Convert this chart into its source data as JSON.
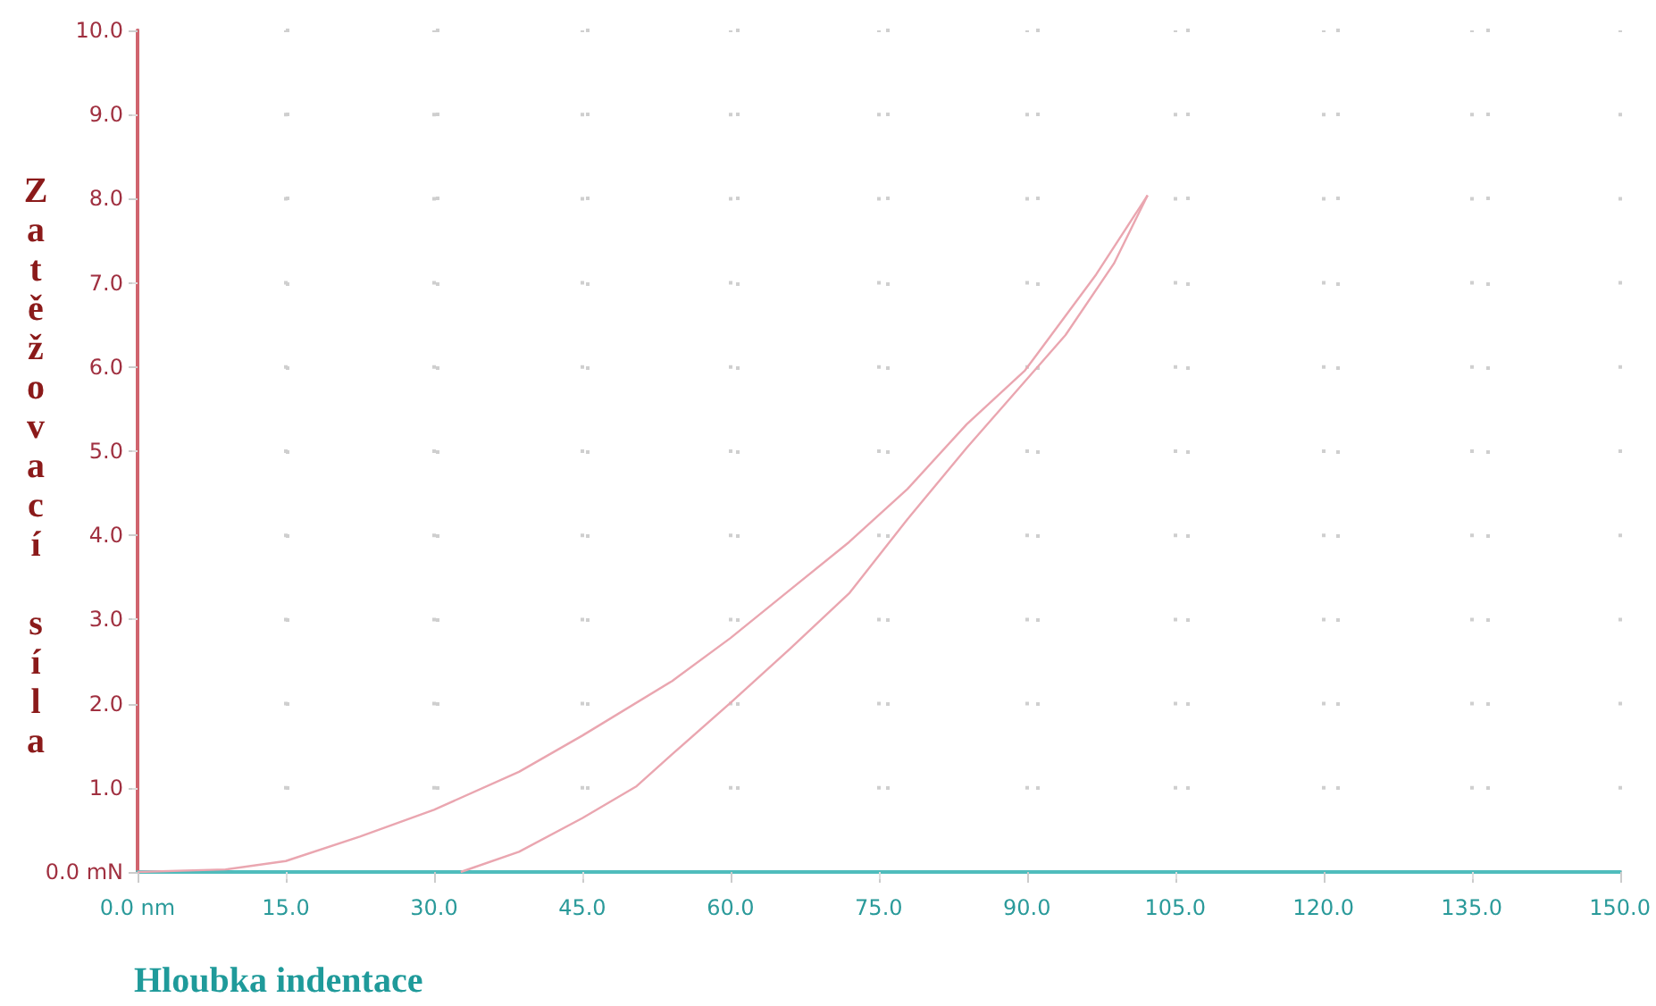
{
  "chart_data": {
    "type": "line",
    "xlabel": "Hloubka indentace",
    "ylabel": "Zatěžovací síla",
    "xlim": [
      0,
      150
    ],
    "ylim": [
      0,
      10
    ],
    "xticks": [
      {
        "value": 0,
        "label": "0.0 nm"
      },
      {
        "value": 15,
        "label": "15.0"
      },
      {
        "value": 30,
        "label": "30.0"
      },
      {
        "value": 45,
        "label": "45.0"
      },
      {
        "value": 60,
        "label": "60.0"
      },
      {
        "value": 75,
        "label": "75.0"
      },
      {
        "value": 90,
        "label": "90.0"
      },
      {
        "value": 105,
        "label": "105.0"
      },
      {
        "value": 120,
        "label": "120.0"
      },
      {
        "value": 135,
        "label": "135.0"
      },
      {
        "value": 150,
        "label": "150.0"
      }
    ],
    "yticks": [
      {
        "value": 0,
        "label": "0.0 mN"
      },
      {
        "value": 1,
        "label": "1.0"
      },
      {
        "value": 2,
        "label": "2.0"
      },
      {
        "value": 3,
        "label": "3.0"
      },
      {
        "value": 4,
        "label": "4.0"
      },
      {
        "value": 5,
        "label": "5.0"
      },
      {
        "value": 6,
        "label": "6.0"
      },
      {
        "value": 7,
        "label": "7.0"
      },
      {
        "value": 8,
        "label": "8.0"
      },
      {
        "value": 9,
        "label": "9.0"
      },
      {
        "value": 10,
        "label": "10.0"
      }
    ],
    "grid": true,
    "marker": "none",
    "line_style": "solid",
    "series": [
      {
        "color": "#eaa6b0",
        "x": [
          0,
          8.9,
          15,
          22.5,
          30,
          38.6,
          45,
          54.1,
          60,
          66,
          72,
          77.9,
          83.9,
          89.8,
          91,
          97,
          102.2
        ],
        "values": [
          0,
          0.03,
          0.13,
          0.42,
          0.74,
          1.19,
          1.62,
          2.27,
          2.78,
          3.35,
          3.92,
          4.55,
          5.32,
          5.96,
          6.15,
          7.1,
          8.04
        ]
      },
      {
        "color": "#eaa6b0",
        "x": [
          102.2,
          98.8,
          93.9,
          89.8,
          83.9,
          77.9,
          72,
          66,
          60,
          54.1,
          50.5,
          45,
          38.6,
          32.7
        ],
        "values": [
          8.04,
          7.23,
          6.38,
          5.83,
          5.04,
          4.19,
          3.31,
          2.65,
          2.01,
          1.4,
          1.02,
          0.64,
          0.24,
          0
        ]
      }
    ]
  }
}
